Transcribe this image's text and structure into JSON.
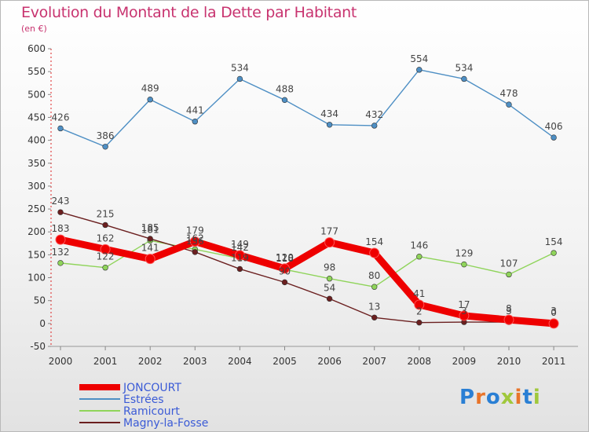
{
  "chart_data": {
    "type": "line",
    "title": "Evolution du Montant de la Dette par Habitant",
    "subtitle": "(en €)",
    "x": [
      "2000",
      "2001",
      "2002",
      "2003",
      "2004",
      "2005",
      "2006",
      "2007",
      "2008",
      "2009",
      "2010",
      "2011"
    ],
    "ylim": [
      -50,
      600
    ],
    "yticks": [
      -50,
      0,
      50,
      100,
      150,
      200,
      250,
      300,
      350,
      400,
      450,
      500,
      550,
      600
    ],
    "grid": false,
    "legend_placement": "bottom-left",
    "series": [
      {
        "name": "JONCOURT",
        "color": "#ee0000",
        "values": [
          183,
          162,
          141,
          179,
          149,
          120,
          177,
          154,
          41,
          17,
          8,
          0
        ]
      },
      {
        "name": "Estrées",
        "color": "#4e8fc4",
        "values": [
          426,
          386,
          489,
          441,
          534,
          488,
          434,
          432,
          554,
          534,
          478,
          406
        ]
      },
      {
        "name": "Ramicourt",
        "color": "#8fd45a",
        "values": [
          132,
          122,
          181,
          162,
          142,
          118,
          98,
          80,
          146,
          129,
          107,
          154
        ]
      },
      {
        "name": "Magny-la-Fosse",
        "color": "#6b1f1f",
        "values": [
          243,
          215,
          185,
          156,
          119,
          90,
          54,
          13,
          2,
          3,
          3,
          3
        ]
      }
    ]
  },
  "logo": {
    "text": "Proxiti"
  }
}
